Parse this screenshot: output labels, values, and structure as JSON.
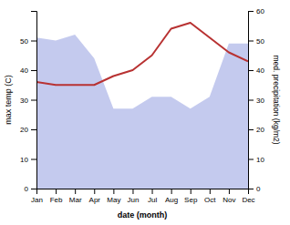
{
  "chart_data": {
    "type": "line",
    "xlabel": "date (month)",
    "ylabel": "max temp (C)",
    "y2label": "med. precipitation (kg/m2)",
    "categories": [
      "Jan",
      "Feb",
      "Mar",
      "Apr",
      "May",
      "Jun",
      "Jul",
      "Aug",
      "Sep",
      "Oct",
      "Nov",
      "Dec"
    ],
    "series": [
      {
        "type": "area",
        "axis": "y2",
        "color": "#b0b8e8",
        "values": [
          51,
          50,
          52,
          44,
          27,
          27,
          31,
          31,
          27,
          31,
          49,
          49
        ]
      },
      {
        "type": "line",
        "color": "#b83232",
        "values": [
          36,
          35,
          35,
          35,
          38,
          40,
          45,
          54,
          56,
          51,
          46,
          43
        ]
      }
    ],
    "ylim": [
      0,
      60
    ],
    "yticks": [
      0,
      10,
      20,
      30,
      40,
      50
    ],
    "y2lim": [
      0,
      60
    ],
    "y2ticks": [
      0,
      10,
      20,
      30,
      40,
      50,
      60
    ]
  }
}
